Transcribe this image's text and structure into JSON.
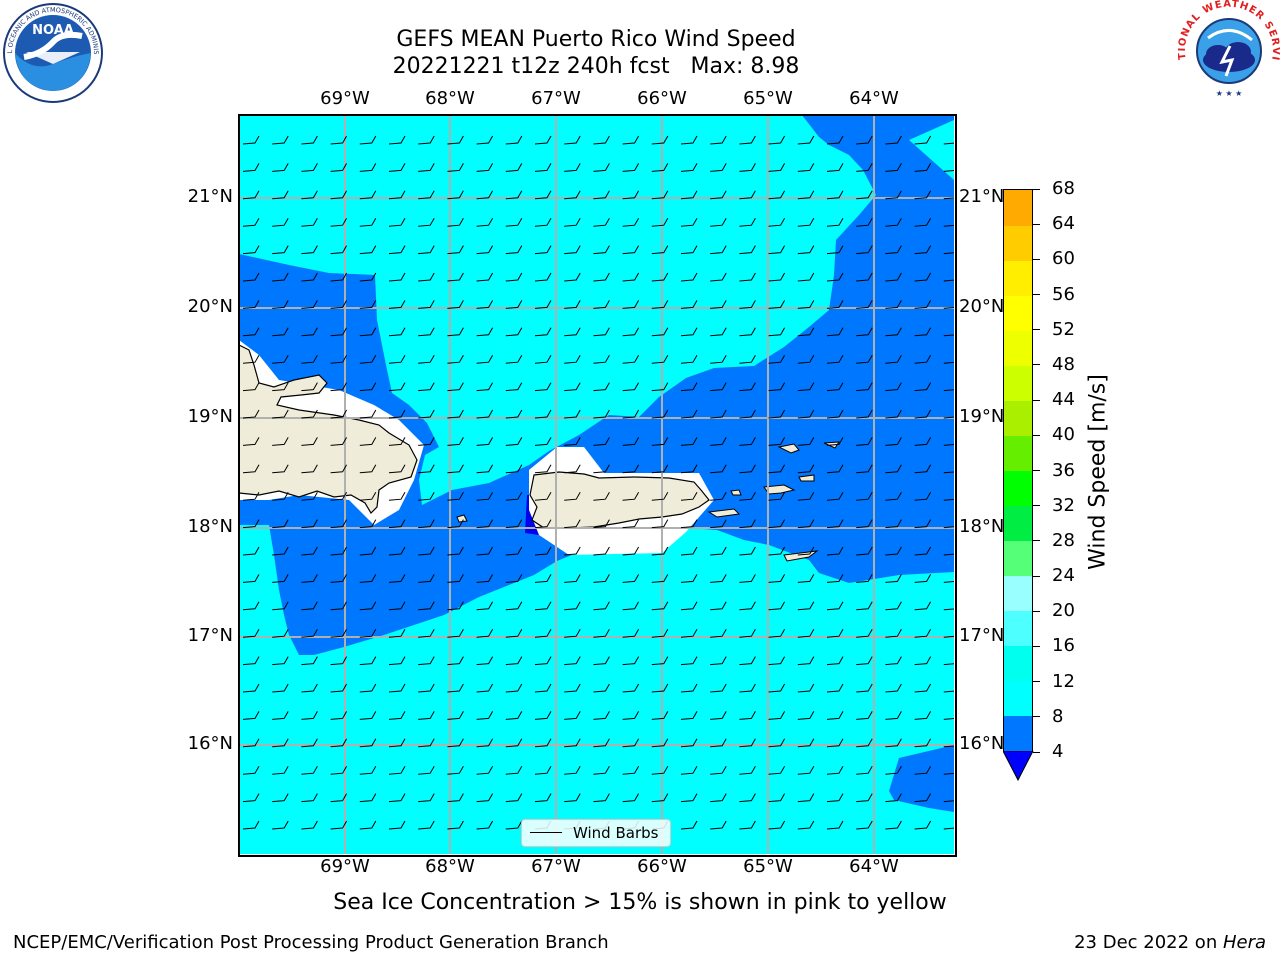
{
  "title": {
    "line1": "GEFS MEAN Puerto Rico Wind Speed",
    "line2": "20221221 t12z 240h fcst   Max: 8.98"
  },
  "logos": {
    "noaa": "NOAA",
    "nws": "NATIONAL WEATHER SERVICE"
  },
  "map": {
    "lon_labels": [
      "69°W",
      "68°W",
      "67°W",
      "66°W",
      "65°W",
      "64°W"
    ],
    "lat_labels": [
      "21°N",
      "20°N",
      "19°N",
      "18°N",
      "17°N",
      "16°N"
    ],
    "legend_label": "Wind Barbs",
    "colors": {
      "ocean_light": "#00ffff",
      "ocean_mid": "#0077ff",
      "ocean_dark": "#0000ee",
      "land": "#efedd9",
      "grid": "#b0b0b0"
    }
  },
  "colorbar": {
    "label": "Wind Speed [m/s]",
    "ticks": [
      "68",
      "64",
      "60",
      "56",
      "52",
      "48",
      "44",
      "40",
      "36",
      "32",
      "28",
      "24",
      "20",
      "16",
      "12",
      "8",
      "4"
    ],
    "colors": [
      "#0000ff",
      "#0077ff",
      "#00ffff",
      "#00ffee",
      "#4dffff",
      "#99ffff",
      "#55ff77",
      "#00ee44",
      "#00ff00",
      "#66ee00",
      "#aaee00",
      "#ccff00",
      "#eeff00",
      "#ffff00",
      "#ffee00",
      "#ffcc00",
      "#ffaa00",
      "#ff8800",
      "#ff6600",
      "#ff4400",
      "#ff2200",
      "#ff0000"
    ]
  },
  "footer": {
    "note": "Sea Ice Concentration > 15% is shown in pink to yellow",
    "left": "NCEP/EMC/Verification Post Processing Product Generation Branch",
    "right_prefix": "23 Dec 2022 on ",
    "right_host": "Hera"
  }
}
